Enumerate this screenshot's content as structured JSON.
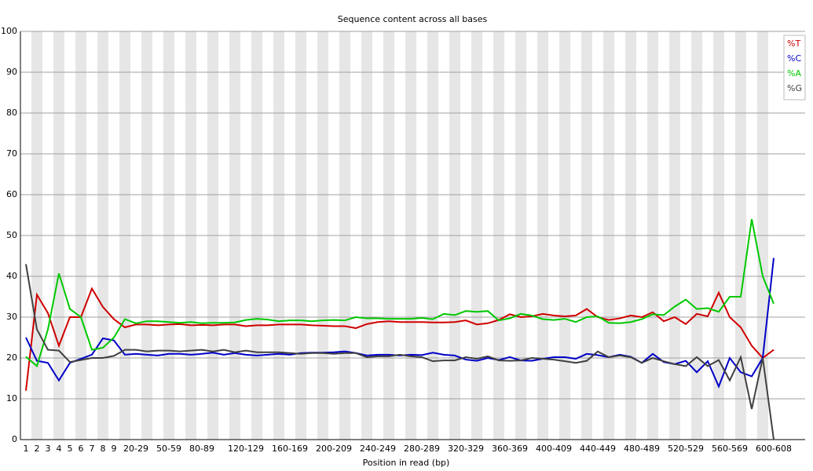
{
  "chart_data": {
    "type": "line",
    "title": "Sequence content across all bases",
    "x_label": "Position in read (bp)",
    "categories": [
      "1",
      "2",
      "3",
      "4",
      "5",
      "6",
      "7",
      "8",
      "9",
      null,
      "20-29",
      null,
      null,
      "50-59",
      null,
      null,
      "80-89",
      null,
      null,
      null,
      "120-129",
      null,
      null,
      null,
      "160-169",
      null,
      null,
      null,
      "200-209",
      null,
      null,
      null,
      "240-249",
      null,
      null,
      null,
      "280-289",
      null,
      null,
      null,
      "320-329",
      null,
      null,
      null,
      "360-369",
      null,
      null,
      null,
      "400-409",
      null,
      null,
      null,
      "440-449",
      null,
      null,
      null,
      "480-489",
      null,
      null,
      null,
      "520-529",
      null,
      null,
      null,
      "560-569",
      null,
      null,
      null,
      "600-608"
    ],
    "ylim": [
      0,
      100
    ],
    "yticks": [
      0,
      10,
      20,
      30,
      40,
      50,
      60,
      70,
      80,
      90,
      100
    ],
    "grid": true,
    "legend": "top-right",
    "series": [
      {
        "name": "%T",
        "color": "#d00000",
        "values": [
          12,
          35.5,
          31,
          23,
          30,
          30,
          37,
          32.5,
          29.5,
          27.5,
          28.2,
          28.2,
          28,
          28.2,
          28.3,
          28,
          28.1,
          28,
          28.2,
          28.2,
          27.8,
          28,
          28,
          28.2,
          28.2,
          28.2,
          28,
          27.9,
          27.8,
          27.8,
          27.3,
          28.3,
          28.8,
          29,
          28.8,
          28.8,
          28.8,
          28.7,
          28.7,
          28.8,
          29.2,
          28.2,
          28.5,
          29.3,
          30.7,
          30,
          30.2,
          30.8,
          30.4,
          30.2,
          30.4,
          32,
          30,
          29.3,
          29.7,
          30.4,
          30,
          31.2,
          29,
          30,
          28.3,
          30.8,
          30.2,
          36,
          30,
          27.5,
          23,
          20,
          22
        ]
      },
      {
        "name": "%C",
        "color": "#0000c8",
        "values": [
          25,
          19.3,
          18.8,
          14.5,
          18.8,
          19.8,
          20.8,
          24.8,
          24.3,
          20.8,
          21,
          20.8,
          20.6,
          21,
          21,
          20.8,
          21,
          21.3,
          20.8,
          21.2,
          20.8,
          20.6,
          20.8,
          21,
          20.8,
          21.2,
          21.3,
          21.3,
          21.4,
          21.6,
          21.2,
          20.6,
          20.8,
          20.8,
          20.6,
          20.8,
          20.7,
          21.3,
          20.8,
          20.6,
          19.6,
          19.3,
          20,
          19.5,
          20.2,
          19.4,
          19.3,
          19.8,
          20.2,
          20.2,
          19.8,
          21,
          20.7,
          20.2,
          20.8,
          20.3,
          18.8,
          21,
          19,
          18.5,
          19.3,
          16.5,
          19.2,
          13,
          20,
          16.5,
          15.5,
          20,
          44.5
        ]
      },
      {
        "name": "%A",
        "color": "#00c800",
        "values": [
          20.3,
          18,
          27,
          40.7,
          32,
          30,
          22,
          22.5,
          25,
          29.5,
          28.5,
          29,
          29,
          28.8,
          28.6,
          28.8,
          28.5,
          28.6,
          28.6,
          28.7,
          29.3,
          29.6,
          29.4,
          29,
          29.2,
          29.2,
          29,
          29.2,
          29.3,
          29.2,
          30,
          29.7,
          29.7,
          29.6,
          29.6,
          29.6,
          29.8,
          29.5,
          30.8,
          30.5,
          31.5,
          31.3,
          31.5,
          29.2,
          29.7,
          30.8,
          30.4,
          29.5,
          29.3,
          29.6,
          28.8,
          30,
          30.2,
          28.6,
          28.5,
          28.8,
          29.5,
          30.7,
          30.5,
          32.6,
          34.3,
          32,
          32.2,
          31.3,
          35,
          35,
          54,
          40,
          33.3
        ]
      },
      {
        "name": "%G",
        "color": "#404040",
        "values": [
          43,
          27,
          22,
          21.8,
          19,
          19.5,
          20,
          20,
          20.5,
          22,
          22,
          21.6,
          21.8,
          21.8,
          21.6,
          21.8,
          22,
          21.6,
          22,
          21.4,
          21.8,
          21.4,
          21.4,
          21.4,
          21.2,
          21,
          21.2,
          21.2,
          21,
          21.2,
          21.2,
          20.2,
          20.4,
          20.4,
          20.8,
          20.4,
          20.2,
          19.2,
          19.4,
          19.4,
          20.2,
          19.8,
          20.4,
          19.4,
          19.3,
          19.4,
          20,
          19.8,
          19.6,
          19.2,
          18.8,
          19.3,
          21.6,
          20.2,
          20.6,
          20.2,
          18.8,
          20,
          19.2,
          18.5,
          18,
          20.2,
          18,
          19.5,
          14.5,
          20.2,
          7.5,
          20,
          0
        ]
      }
    ]
  }
}
